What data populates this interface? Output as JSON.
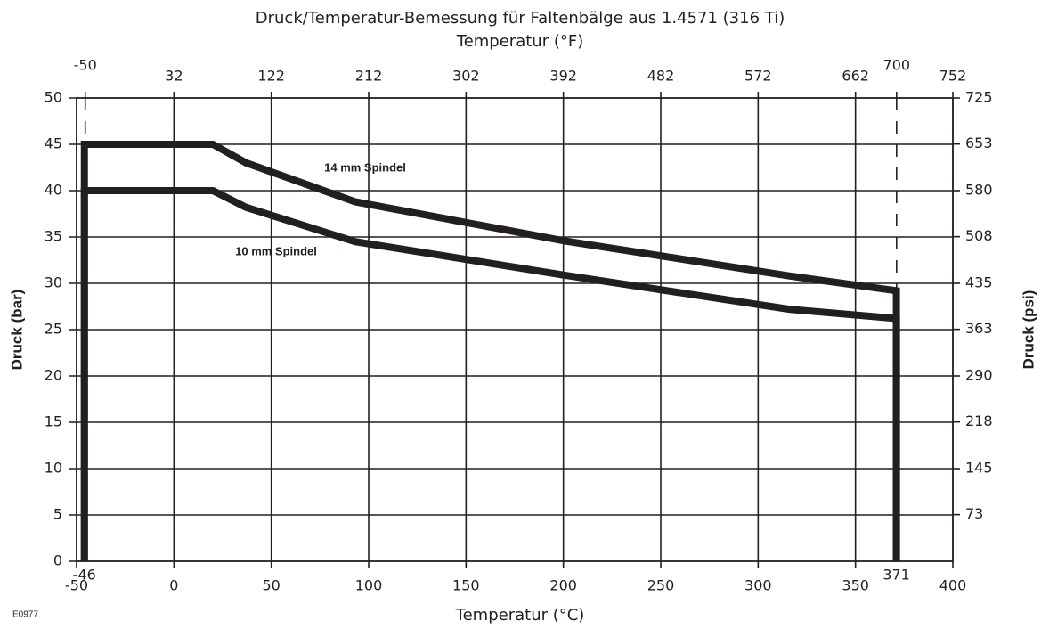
{
  "chart_data": {
    "type": "line",
    "title": "Druck/Temperatur-Bemessung für Faltenbälge aus 1.4571 (316 Ti)",
    "x2label": "Temperatur (°F)",
    "xlabel": "Temperatur (°C)",
    "ylabel": "Druck (bar)",
    "y2label": "Druck (psi)",
    "figure_code": "E0977",
    "xlim": [
      -50,
      400
    ],
    "xticks": [
      -50,
      0,
      50,
      100,
      150,
      200,
      250,
      300,
      350,
      400
    ],
    "x_extra_ticks": [
      -46,
      371
    ],
    "x2lim": [
      -58,
      752
    ],
    "x2ticks": [
      -50,
      32,
      122,
      212,
      302,
      392,
      482,
      572,
      662,
      700,
      752
    ],
    "ylim": [
      0,
      50
    ],
    "yticks": [
      0,
      5,
      10,
      15,
      20,
      25,
      30,
      35,
      40,
      45,
      50
    ],
    "y2lim": [
      0,
      725
    ],
    "y2ticks": [
      73,
      145,
      218,
      290,
      363,
      435,
      508,
      580,
      653,
      725
    ],
    "grid": true,
    "series": [
      {
        "name": "14 mm Spindel",
        "color": "#231f20",
        "x": [
          -46,
          -46,
          20,
          37,
          93,
          200,
          316,
          371,
          371
        ],
        "values": [
          0,
          45,
          45,
          43,
          38.8,
          34.6,
          30.8,
          29.2,
          0
        ]
      },
      {
        "name": "10 mm Spindel",
        "color": "#231f20",
        "x": [
          -46,
          -46,
          20,
          37,
          93,
          200,
          316,
          371,
          371
        ],
        "values": [
          0,
          40,
          40,
          38.2,
          34.5,
          30.9,
          27.2,
          26.2,
          0
        ]
      }
    ]
  }
}
